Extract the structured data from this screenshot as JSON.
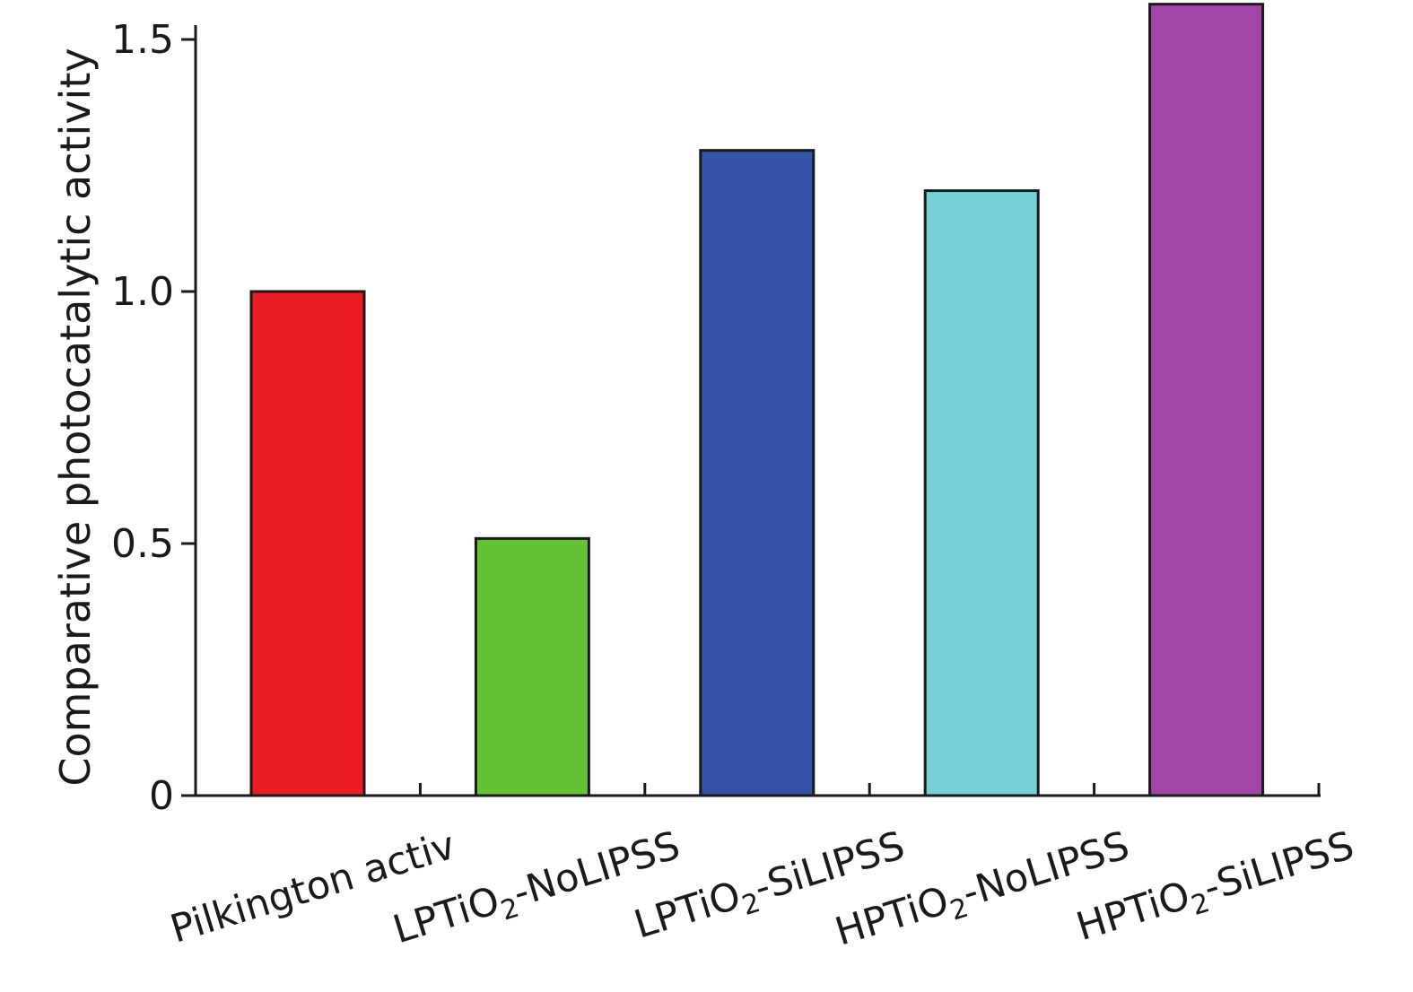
{
  "chart_data": {
    "type": "bar",
    "title": "",
    "xlabel": "",
    "ylabel": "Comparative photocatalytic activity",
    "ylim": [
      0,
      1.5
    ],
    "yticks": [
      {
        "value": 0,
        "label": "0"
      },
      {
        "value": 0.5,
        "label": "0.5"
      },
      {
        "value": 1.0,
        "label": "1.0"
      },
      {
        "value": 1.5,
        "label": "1.5"
      }
    ],
    "grid": false,
    "legend": "none",
    "categories": [
      {
        "label": "Pilkington activ",
        "prefix": "Pilkington activ",
        "sub": "",
        "suffix": ""
      },
      {
        "label": "LPTiO2-NoLIPSS",
        "prefix": "LPTiO",
        "sub": "2",
        "suffix": "-NoLIPSS"
      },
      {
        "label": "LPTiO2-SiLIPSS",
        "prefix": "LPTiO",
        "sub": "2",
        "suffix": "-SiLIPSS"
      },
      {
        "label": "HPTiO2-NoLIPSS",
        "prefix": "HPTiO",
        "sub": "2",
        "suffix": "-NoLIPSS"
      },
      {
        "label": "HPTiO2-SiLIPSS",
        "prefix": "HPTiO",
        "sub": "2",
        "suffix": "-SiLIPSS"
      }
    ],
    "values": [
      1.0,
      0.51,
      1.28,
      1.2,
      1.57
    ],
    "colors": [
      "#ec1c24",
      "#65c232",
      "#3452a7",
      "#75d1d3",
      "#a145a6"
    ]
  }
}
